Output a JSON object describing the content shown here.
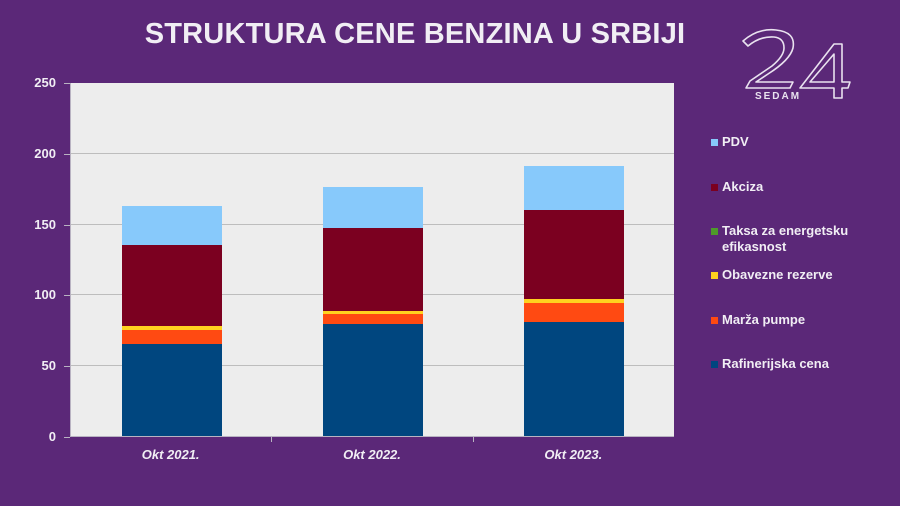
{
  "title": "STRUKTURA CENE BENZINA U SRBIJI",
  "logo": {
    "number": "24",
    "text": "SEDAM"
  },
  "colors": {
    "background": "#5B2878",
    "plot_background": "#EDEDED",
    "PDV": "#87C9FB",
    "Akciza": "#7B0020",
    "Taksa": "#4E9A2A",
    "Obavezne": "#FFD21F",
    "Marza": "#FF4A12",
    "Rafinerijska": "#00467F"
  },
  "legend": [
    {
      "key": "PDV",
      "label": "PDV"
    },
    {
      "key": "Akciza",
      "label": "Akciza"
    },
    {
      "key": "Taksa",
      "label": "Taksa za energetsku efikasnost"
    },
    {
      "key": "Obavezne",
      "label": "Obavezne rezerve"
    },
    {
      "key": "Marza",
      "label": "Marža pumpe"
    },
    {
      "key": "Rafinerijska",
      "label": "Rafinerijska cena"
    }
  ],
  "y_ticks": [
    "0",
    "50",
    "100",
    "150",
    "200",
    "250"
  ],
  "chart_data": {
    "type": "bar",
    "stacked": true,
    "title": "STRUKTURA CENE BENZINA U SRBIJI",
    "xlabel": "",
    "ylabel": "",
    "ylim": [
      0,
      250
    ],
    "yticks": [
      0,
      50,
      100,
      150,
      200,
      250
    ],
    "grid": true,
    "legend_position": "right",
    "categories": [
      "Okt 2021.",
      "Okt 2022.",
      "Okt 2023."
    ],
    "series": [
      {
        "name": "Rafinerijska cena",
        "values": [
          65,
          79,
          80.5
        ]
      },
      {
        "name": "Marža pumpe",
        "values": [
          10,
          7,
          13.5
        ]
      },
      {
        "name": "Taksa za energetsku efikasnost",
        "values": [
          0.2,
          0.2,
          0.2
        ]
      },
      {
        "name": "Obavezne rezerve",
        "values": [
          2.5,
          2,
          2.7
        ]
      },
      {
        "name": "Akciza",
        "values": [
          57.5,
          59,
          63
        ]
      },
      {
        "name": "PDV",
        "values": [
          27.3,
          29,
          31
        ]
      }
    ],
    "totals": [
      162.5,
      176.2,
      190.9
    ]
  }
}
